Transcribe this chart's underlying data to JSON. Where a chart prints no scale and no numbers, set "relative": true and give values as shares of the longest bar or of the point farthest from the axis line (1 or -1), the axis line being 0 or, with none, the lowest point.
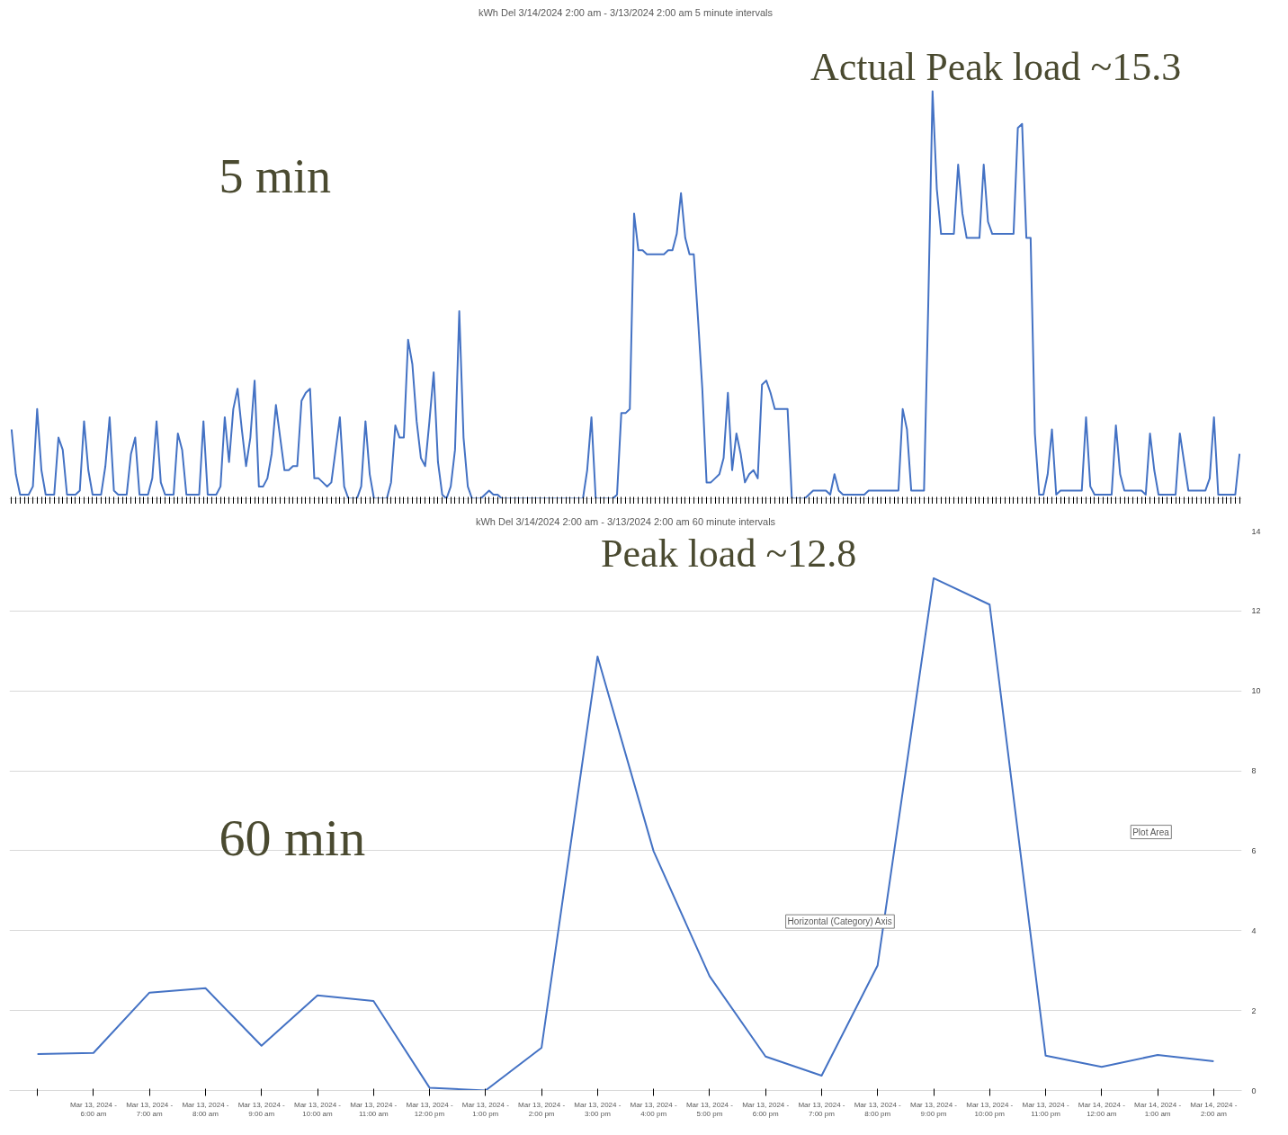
{
  "chart_data": [
    {
      "type": "line",
      "title": "kWh Del 3/14/2024 2:00 am - 3/13/2024 2:00 am 5 minute intervals",
      "relative": true,
      "grid": false,
      "annotations": [
        "5 min",
        "Actual Peak load ~15.3"
      ],
      "categories": [
        null,
        null,
        null,
        null,
        null,
        null,
        null,
        null,
        null,
        null,
        null,
        null,
        null,
        null,
        null,
        null,
        null,
        null,
        null,
        null,
        null,
        null,
        null,
        null,
        null,
        null,
        null,
        null,
        null,
        null,
        null,
        null,
        null,
        null,
        null,
        null,
        null,
        null,
        null,
        null,
        null,
        null,
        null,
        null,
        null,
        null,
        null,
        null,
        null,
        null,
        null,
        null,
        null,
        null,
        null,
        null,
        null,
        null,
        null,
        null,
        null,
        null,
        null,
        null,
        null,
        null,
        null,
        null,
        null,
        null,
        null,
        null,
        null,
        null,
        null,
        null,
        null,
        null,
        null,
        null,
        null,
        null,
        null,
        null,
        null,
        null,
        null,
        null,
        null,
        null,
        null,
        null,
        null,
        null,
        null,
        null,
        null,
        null,
        null,
        null,
        null,
        null,
        null,
        null,
        null,
        null,
        null,
        null,
        null,
        null,
        null,
        null,
        null,
        null,
        null,
        null,
        null,
        null,
        null,
        null,
        null,
        null,
        null,
        null,
        null,
        null,
        null,
        null,
        null,
        null,
        null,
        null,
        null,
        null,
        null,
        null,
        null,
        null,
        null,
        null,
        null,
        null,
        null,
        null,
        null,
        null,
        null,
        null,
        null,
        null,
        null,
        null,
        null,
        null,
        null,
        null,
        null,
        null,
        null,
        null,
        null,
        null,
        null,
        null,
        null,
        null,
        null,
        null,
        null,
        null,
        null,
        null,
        null,
        null,
        null,
        null,
        null,
        null,
        null,
        null,
        null,
        null,
        null,
        null,
        null,
        null,
        null,
        null,
        null,
        null,
        null,
        null,
        null,
        null,
        null,
        null,
        null,
        null,
        null,
        null,
        null,
        null,
        null,
        null,
        null,
        null,
        null,
        null,
        null,
        null,
        null,
        null,
        null,
        null,
        null,
        null,
        null,
        null,
        null,
        null,
        null,
        null,
        null,
        null,
        null,
        null,
        null,
        null,
        null,
        null,
        null,
        null,
        null,
        null,
        null,
        null,
        null,
        null,
        null,
        null,
        null,
        null,
        null,
        null,
        null,
        null,
        null,
        null,
        null,
        null,
        null,
        null,
        null,
        null,
        null,
        null,
        null,
        null,
        null,
        null,
        null,
        null,
        null,
        null,
        null,
        null,
        null,
        null,
        null,
        null,
        null,
        null,
        null,
        null,
        null,
        null,
        null,
        null,
        null,
        null,
        null,
        null,
        null,
        null,
        null,
        null,
        null,
        null,
        null
      ],
      "series": [
        {
          "color": "#4472c4",
          "values": [
            0.17,
            0.06,
            0.01,
            0.01,
            0.01,
            0.03,
            0.22,
            0.07,
            0.01,
            0.01,
            0.01,
            0.15,
            0.12,
            0.01,
            0.01,
            0.01,
            0.02,
            0.19,
            0.07,
            0.01,
            0.01,
            0.01,
            0.08,
            0.2,
            0.02,
            0.01,
            0.01,
            0.01,
            0.11,
            0.15,
            0.01,
            0.01,
            0.01,
            0.05,
            0.19,
            0.04,
            0.01,
            0.01,
            0.01,
            0.16,
            0.12,
            0.01,
            0.01,
            0.01,
            0.01,
            0.19,
            0.01,
            0.01,
            0.01,
            0.03,
            0.2,
            0.09,
            0.22,
            0.27,
            0.17,
            0.08,
            0.15,
            0.29,
            0.03,
            0.03,
            0.05,
            0.11,
            0.23,
            0.15,
            0.07,
            0.07,
            0.08,
            0.08,
            0.24,
            0.26,
            0.27,
            0.05,
            0.05,
            0.04,
            0.03,
            0.04,
            0.12,
            0.2,
            0.03,
            0,
            0,
            0,
            0.03,
            0.19,
            0.06,
            0,
            0,
            0,
            0,
            0.04,
            0.18,
            0.15,
            0.15,
            0.39,
            0.33,
            0.19,
            0.1,
            0.08,
            0.19,
            0.31,
            0.09,
            0.01,
            0,
            0.03,
            0.12,
            0.46,
            0.15,
            0.03,
            0,
            0,
            0,
            0.01,
            0.02,
            0.01,
            0.01,
            0,
            0,
            0,
            0,
            0,
            0,
            0,
            0,
            0,
            0,
            0,
            0,
            0,
            0,
            0,
            0,
            0,
            0,
            0,
            0,
            0.07,
            0.2,
            0,
            0,
            0,
            0,
            0,
            0.01,
            0.21,
            0.21,
            0.22,
            0.7,
            0.61,
            0.61,
            0.6,
            0.6,
            0.6,
            0.6,
            0.6,
            0.61,
            0.61,
            0.65,
            0.75,
            0.64,
            0.6,
            0.6,
            0.44,
            0.27,
            0.04,
            0.04,
            0.05,
            0.06,
            0.1,
            0.26,
            0.07,
            0.16,
            0.11,
            0.04,
            0.06,
            0.07,
            0.05,
            0.28,
            0.29,
            0.26,
            0.22,
            0.22,
            0.22,
            0.22,
            0,
            0,
            0,
            0,
            0.01,
            0.02,
            0.02,
            0.02,
            0.02,
            0.01,
            0.06,
            0.02,
            0.01,
            0.01,
            0.01,
            0.01,
            0.01,
            0.01,
            0.02,
            0.02,
            0.02,
            0.02,
            0.02,
            0.02,
            0.02,
            0.02,
            0.22,
            0.17,
            0.02,
            0.02,
            0.02,
            0.02,
            0.48,
            1,
            0.76,
            0.65,
            0.65,
            0.65,
            0.65,
            0.82,
            0.7,
            0.64,
            0.64,
            0.64,
            0.64,
            0.82,
            0.68,
            0.65,
            0.65,
            0.65,
            0.65,
            0.65,
            0.65,
            0.91,
            0.92,
            0.64,
            0.64,
            0.16,
            0.01,
            0.01,
            0.06,
            0.17,
            0.01,
            0.02,
            0.02,
            0.02,
            0.02,
            0.02,
            0.02,
            0.2,
            0.03,
            0.01,
            0.01,
            0.01,
            0.01,
            0.01,
            0.18,
            0.06,
            0.02,
            0.02,
            0.02,
            0.02,
            0.02,
            0.01,
            0.16,
            0.07,
            0.01,
            0.01,
            0.01,
            0.01,
            0.01,
            0.16,
            0.09,
            0.02,
            0.02,
            0.02,
            0.02,
            0.02,
            0.05,
            0.2,
            0.01,
            0.01,
            0.01,
            0.01,
            0.01,
            0.11
          ]
        }
      ]
    },
    {
      "type": "line",
      "title": "kWh Del 3/14/2024 2:00 am - 3/13/2024 2:00 am 60 minute intervals",
      "grid": "y",
      "annotations": [
        "60 min",
        "Peak load ~12.8",
        "Horizontal (Category) Axis",
        "Plot Area"
      ],
      "categories": [
        null,
        "Mar 13, 2024 - 6:00 am",
        "Mar 13, 2024 - 7:00 am",
        "Mar 13, 2024 - 8:00 am",
        "Mar 13, 2024 - 9:00 am",
        "Mar 13, 2024 - 10:00 am",
        "Mar 13, 2024 - 11:00 am",
        "Mar 13, 2024 - 12:00 pm",
        "Mar 13, 2024 - 1:00 pm",
        "Mar 13, 2024 - 2:00 pm",
        "Mar 13, 2024 - 3:00 pm",
        "Mar 13, 2024 - 4:00 pm",
        "Mar 13, 2024 - 5:00 pm",
        "Mar 13, 2024 - 6:00 pm",
        "Mar 13, 2024 - 7:00 pm",
        "Mar 13, 2024 - 8:00 pm",
        "Mar 13, 2024 - 9:00 pm",
        "Mar 13, 2024 - 10:00 pm",
        "Mar 13, 2024 - 11:00 pm",
        "Mar 14, 2024 - 12:00 am",
        "Mar 14, 2024 - 1:00 am",
        "Mar 14, 2024 - 2:00 am"
      ],
      "ylim": [
        0,
        14
      ],
      "yticks": [
        0,
        2,
        4,
        6,
        8,
        10,
        12,
        14
      ],
      "series": [
        {
          "color": "#4472c4",
          "values": [
            0.91,
            0.94,
            2.45,
            2.56,
            1.12,
            2.38,
            2.24,
            0.07,
            0,
            1.07,
            10.86,
            5.99,
            2.86,
            0.85,
            0.37,
            3.13,
            12.82,
            12.16,
            0.87,
            0.59,
            0.89,
            0.73
          ]
        }
      ]
    }
  ]
}
